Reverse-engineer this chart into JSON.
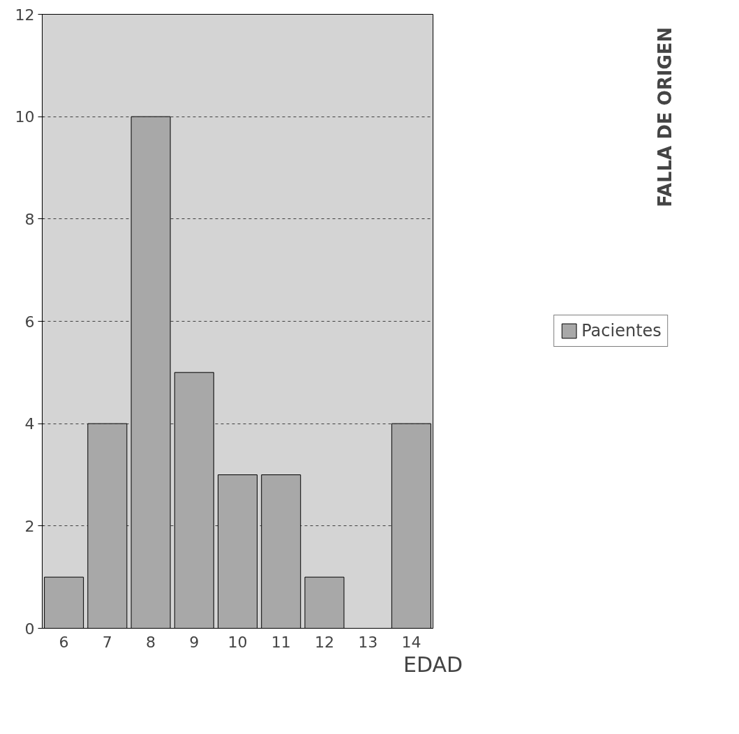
{
  "chart_data": {
    "type": "bar",
    "categories": [
      "6",
      "7",
      "8",
      "9",
      "10",
      "11",
      "12",
      "13",
      "14"
    ],
    "series": [
      {
        "name": "Pacientes",
        "color": "#a8a8a8",
        "values": [
          1,
          4,
          10,
          5,
          3,
          3,
          1,
          0,
          4
        ]
      }
    ],
    "xlabel": "EDAD",
    "ylim": [
      0,
      12
    ],
    "yticks": [
      0,
      2,
      4,
      6,
      8,
      10,
      12
    ],
    "grid": "y",
    "legend": "right",
    "annotations": [
      "FALLA DE ORIGEN"
    ]
  }
}
